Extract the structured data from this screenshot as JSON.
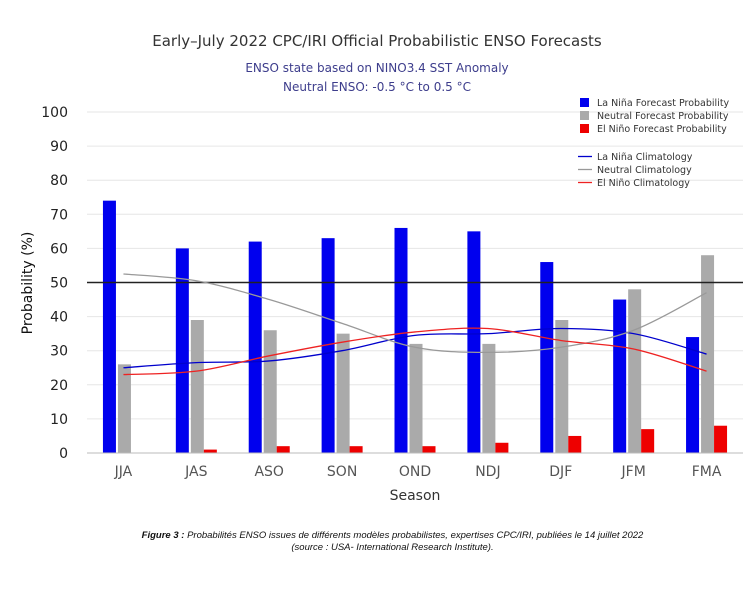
{
  "chart_data": {
    "type": "bar",
    "title": "Early–July 2022 CPC/IRI Official Probabilistic ENSO Forecasts",
    "subtitle_lines": [
      "ENSO state based on NINO3.4 SST Anomaly",
      "Neutral ENSO: -0.5 °C to 0.5 °C"
    ],
    "xlabel": "Season",
    "ylabel": "Probability (%)",
    "ylim": [
      0,
      100
    ],
    "yticks": [
      "0",
      "10",
      "20",
      "30",
      "40",
      "50",
      "60",
      "70",
      "80",
      "90",
      "100"
    ],
    "reference_line": 50,
    "categories": [
      "JJA",
      "JAS",
      "ASO",
      "SON",
      "OND",
      "NDJ",
      "DJF",
      "JFM",
      "FMA"
    ],
    "series": [
      {
        "name": "La Niña Forecast Probability",
        "color": "#0000ee",
        "values": [
          74,
          60,
          62,
          63,
          66,
          65,
          56,
          45,
          34
        ]
      },
      {
        "name": "Neutral Forecast Probability",
        "color": "#aaaaaa",
        "values": [
          26,
          39,
          36,
          35,
          32,
          32,
          39,
          48,
          58
        ]
      },
      {
        "name": "El Niño Forecast Probability",
        "color": "#ee0000",
        "values": [
          0,
          1,
          2,
          2,
          2,
          3,
          5,
          7,
          8
        ]
      }
    ],
    "lines": [
      {
        "name": "La Niña Climatology",
        "color": "#0000cc",
        "values": [
          25,
          26.5,
          27,
          30,
          34.5,
          35,
          36.5,
          35,
          29
        ]
      },
      {
        "name": "Neutral Climatology",
        "color": "#999999",
        "values": [
          52.5,
          50.5,
          45,
          38,
          31,
          29.5,
          31,
          36,
          47
        ]
      },
      {
        "name": "El Niño Climatology",
        "color": "#ee2222",
        "values": [
          23,
          24,
          28.5,
          32.5,
          35.5,
          36.5,
          33,
          30.5,
          24
        ]
      }
    ]
  },
  "caption": {
    "label": "Figure 3 :",
    "text": " Probabilités ENSO issues de différents modèles probabilistes, expertises CPC/IRI, publiées le 14 juillet 2022",
    "source": "(source : USA- International Research Institute)."
  }
}
